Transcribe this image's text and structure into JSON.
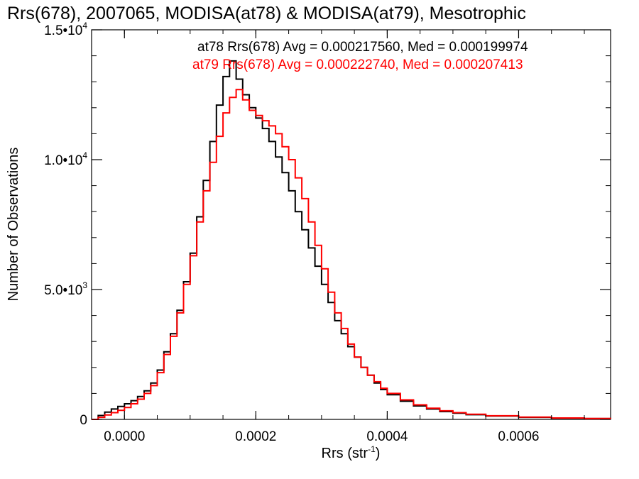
{
  "chart_data": {
    "type": "line",
    "title": "Rrs(678), 2007065, MODISA(at78) & MODISA(at79), Mesotrophic",
    "xlabel_base": "Rrs (str",
    "xlabel_exp": "-1",
    "xlabel_close": ")",
    "ylabel": "Number of Observations",
    "xlim": [
      -5e-05,
      0.00074
    ],
    "ylim": [
      0,
      15000
    ],
    "x_ticks": [
      {
        "value": 0.0,
        "label": "0.0000"
      },
      {
        "value": 0.0002,
        "label": "0.0002"
      },
      {
        "value": 0.0004,
        "label": "0.0004"
      },
      {
        "value": 0.0006,
        "label": "0.0006"
      }
    ],
    "y_ticks": [
      {
        "value": 0,
        "label": "0",
        "exp": ""
      },
      {
        "value": 5000,
        "label": "5.0•10",
        "exp": "3"
      },
      {
        "value": 10000,
        "label": "1.0•10",
        "exp": "4"
      },
      {
        "value": 15000,
        "label": "1.5•10",
        "exp": "4"
      }
    ],
    "series": [
      {
        "name": "at78",
        "legend": "at78 Rrs(678) Avg = 0.000217560, Med = 0.000199974",
        "color": "#000000",
        "points": [
          [
            -5e-05,
            0
          ],
          [
            -4e-05,
            150
          ],
          [
            -3e-05,
            280
          ],
          [
            -2e-05,
            400
          ],
          [
            -1e-05,
            500
          ],
          [
            0.0,
            600
          ],
          [
            1e-05,
            720
          ],
          [
            2e-05,
            880
          ],
          [
            3e-05,
            1100
          ],
          [
            4e-05,
            1400
          ],
          [
            5e-05,
            1900
          ],
          [
            6e-05,
            2600
          ],
          [
            7e-05,
            3300
          ],
          [
            8e-05,
            4200
          ],
          [
            9e-05,
            5300
          ],
          [
            0.0001,
            6400
          ],
          [
            0.00011,
            7800
          ],
          [
            0.00012,
            9200
          ],
          [
            0.00013,
            10700
          ],
          [
            0.00014,
            12100
          ],
          [
            0.00015,
            13200
          ],
          [
            0.00016,
            13800
          ],
          [
            0.00017,
            13100
          ],
          [
            0.00018,
            12500
          ],
          [
            0.00019,
            12000
          ],
          [
            0.0002,
            11600
          ],
          [
            0.00021,
            11200
          ],
          [
            0.00022,
            10700
          ],
          [
            0.00023,
            10100
          ],
          [
            0.00024,
            9500
          ],
          [
            0.00025,
            8800
          ],
          [
            0.00026,
            8000
          ],
          [
            0.00027,
            7300
          ],
          [
            0.00028,
            6600
          ],
          [
            0.00029,
            5900
          ],
          [
            0.0003,
            5200
          ],
          [
            0.00031,
            4500
          ],
          [
            0.00032,
            3800
          ],
          [
            0.00033,
            3300
          ],
          [
            0.00034,
            2800
          ],
          [
            0.00035,
            2400
          ],
          [
            0.00036,
            2000
          ],
          [
            0.00037,
            1700
          ],
          [
            0.00038,
            1400
          ],
          [
            0.00039,
            1150
          ],
          [
            0.0004,
            950
          ],
          [
            0.00042,
            700
          ],
          [
            0.00044,
            520
          ],
          [
            0.00046,
            400
          ],
          [
            0.00048,
            300
          ],
          [
            0.0005,
            240
          ],
          [
            0.00052,
            180
          ],
          [
            0.00055,
            130
          ],
          [
            0.0006,
            80
          ],
          [
            0.00065,
            50
          ],
          [
            0.0007,
            30
          ],
          [
            0.00074,
            20
          ]
        ]
      },
      {
        "name": "at79",
        "legend": "at79 Rrs(678) Avg = 0.000222740, Med = 0.000207413",
        "color": "#ff0000",
        "points": [
          [
            -5e-05,
            0
          ],
          [
            -4e-05,
            80
          ],
          [
            -3e-05,
            170
          ],
          [
            -2e-05,
            260
          ],
          [
            -1e-05,
            350
          ],
          [
            0.0,
            460
          ],
          [
            1e-05,
            600
          ],
          [
            2e-05,
            780
          ],
          [
            3e-05,
            1000
          ],
          [
            4e-05,
            1300
          ],
          [
            5e-05,
            1800
          ],
          [
            6e-05,
            2500
          ],
          [
            7e-05,
            3200
          ],
          [
            8e-05,
            4100
          ],
          [
            9e-05,
            5200
          ],
          [
            0.0001,
            6300
          ],
          [
            0.00011,
            7600
          ],
          [
            0.00012,
            8800
          ],
          [
            0.00013,
            9900
          ],
          [
            0.00014,
            10900
          ],
          [
            0.00015,
            11800
          ],
          [
            0.00016,
            12400
          ],
          [
            0.00017,
            12700
          ],
          [
            0.00018,
            12300
          ],
          [
            0.00019,
            11900
          ],
          [
            0.0002,
            11700
          ],
          [
            0.00021,
            11500
          ],
          [
            0.00022,
            11300
          ],
          [
            0.00023,
            11000
          ],
          [
            0.00024,
            10500
          ],
          [
            0.00025,
            10000
          ],
          [
            0.00026,
            9300
          ],
          [
            0.00027,
            8500
          ],
          [
            0.00028,
            7600
          ],
          [
            0.00029,
            6700
          ],
          [
            0.0003,
            5800
          ],
          [
            0.00031,
            4900
          ],
          [
            0.00032,
            4100
          ],
          [
            0.00033,
            3500
          ],
          [
            0.00034,
            2900
          ],
          [
            0.00035,
            2400
          ],
          [
            0.00036,
            2000
          ],
          [
            0.00037,
            1700
          ],
          [
            0.00038,
            1450
          ],
          [
            0.00039,
            1200
          ],
          [
            0.0004,
            1000
          ],
          [
            0.00042,
            750
          ],
          [
            0.00044,
            560
          ],
          [
            0.00046,
            430
          ],
          [
            0.00048,
            330
          ],
          [
            0.0005,
            260
          ],
          [
            0.00052,
            200
          ],
          [
            0.00055,
            140
          ],
          [
            0.0006,
            90
          ],
          [
            0.00065,
            55
          ],
          [
            0.0007,
            35
          ],
          [
            0.00074,
            25
          ]
        ]
      }
    ]
  }
}
